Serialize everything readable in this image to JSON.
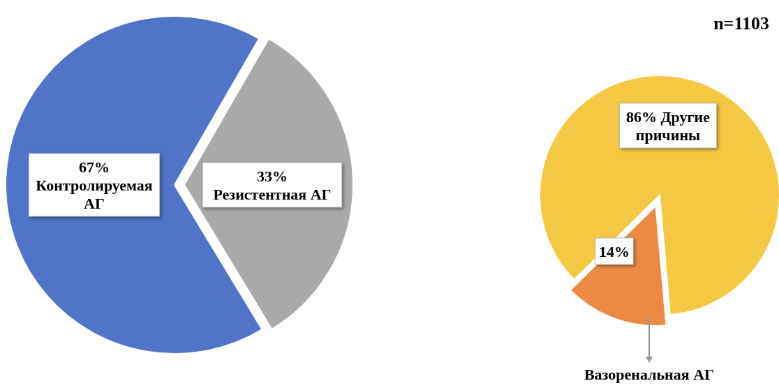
{
  "chart_data": [
    {
      "type": "pie",
      "categories": [
        "Контролируемая АГ",
        "Резистентная АГ"
      ],
      "values": [
        67,
        33
      ],
      "value_labels": [
        "67%",
        "33%"
      ],
      "colors": [
        "#4f74c8",
        "#a9a9a9"
      ],
      "annotations": [
        "n=1103"
      ]
    },
    {
      "type": "pie",
      "categories": [
        "Другие причины",
        "Вазоренальная АГ"
      ],
      "values": [
        86,
        14
      ],
      "value_labels": [
        "86%",
        "14%"
      ],
      "colors": [
        "#f5c843",
        "#ec8a43"
      ]
    }
  ]
}
